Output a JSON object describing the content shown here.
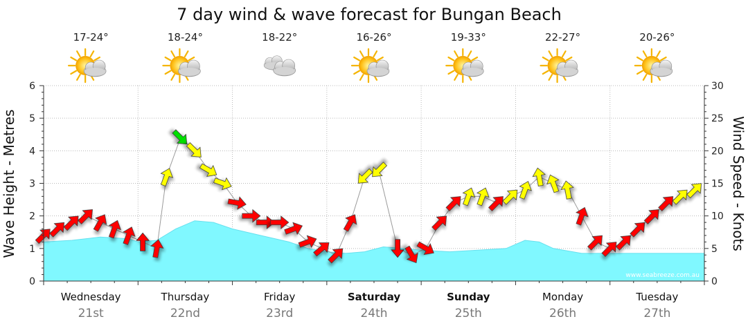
{
  "chart_data": {
    "type": "line",
    "title": "7 day wind & wave forecast for Bungan Beach",
    "ylabel_left": "Wave Height - Metres",
    "ylabel_right": "Wind Speed - Knots",
    "ylim_left": [
      0,
      6
    ],
    "ylim_right": [
      0,
      30
    ],
    "yticks_left": [
      "0",
      "1",
      "2",
      "3",
      "4",
      "5",
      "6"
    ],
    "yticks_right": [
      "0",
      "5",
      "10",
      "15",
      "20",
      "25",
      "30"
    ],
    "grid": true,
    "watermark": "www.seabreeze.com.au",
    "days": [
      {
        "name": "Wednesday",
        "date": "21st",
        "temp": "17-24°",
        "weather_icon": "sun-cloud-icon",
        "bold": false
      },
      {
        "name": "Thursday",
        "date": "22nd",
        "temp": "18-24°",
        "weather_icon": "sun-cloud-icon",
        "bold": false
      },
      {
        "name": "Friday",
        "date": "23rd",
        "temp": "18-22°",
        "weather_icon": "cloud-icon",
        "bold": false
      },
      {
        "name": "Saturday",
        "date": "24th",
        "temp": "16-26°",
        "weather_icon": "sun-cloud-icon",
        "bold": true
      },
      {
        "name": "Sunday",
        "date": "25th",
        "temp": "19-33°",
        "weather_icon": "sun-cloud-icon",
        "bold": true
      },
      {
        "name": "Monday",
        "date": "26th",
        "temp": "22-27°",
        "weather_icon": "sun-cloud-icon",
        "bold": false
      },
      {
        "name": "Tuesday",
        "date": "27th",
        "temp": "20-26°",
        "weather_icon": "sun-cloud-icon",
        "bold": false
      }
    ],
    "x_unit": "day",
    "wave_height": {
      "x": [
        0,
        0.3,
        0.6,
        0.9,
        1.0,
        1.2,
        1.4,
        1.6,
        1.8,
        2.0,
        2.3,
        2.6,
        2.8,
        3.0,
        3.2,
        3.4,
        3.6,
        3.8,
        4.0,
        4.3,
        4.6,
        4.9,
        5.1,
        5.25,
        5.4,
        5.7,
        6.0,
        6.5,
        7.0
      ],
      "values": [
        1.2,
        1.25,
        1.35,
        1.3,
        1.2,
        1.25,
        1.6,
        1.85,
        1.8,
        1.6,
        1.4,
        1.2,
        1.0,
        0.9,
        0.85,
        0.9,
        1.05,
        1.0,
        0.95,
        0.9,
        0.95,
        1.0,
        1.25,
        1.2,
        1.0,
        0.85,
        0.85,
        0.85,
        0.85
      ],
      "color": "#80f8ff"
    },
    "wind": {
      "x": [
        0,
        0.15,
        0.3,
        0.45,
        0.6,
        0.75,
        0.9,
        1.05,
        1.2,
        1.3,
        1.45,
        1.6,
        1.75,
        1.9,
        2.05,
        2.2,
        2.35,
        2.5,
        2.65,
        2.8,
        2.95,
        3.1,
        3.25,
        3.4,
        3.55,
        3.75,
        3.9,
        4.05,
        4.2,
        4.35,
        4.5,
        4.65,
        4.8,
        4.95,
        5.1,
        5.25,
        5.4,
        5.55,
        5.7,
        5.85,
        6.0,
        6.15,
        6.3,
        6.45,
        6.6,
        6.75,
        6.9
      ],
      "speed_knots": [
        7,
        8,
        9,
        10,
        9,
        8,
        7,
        6,
        5,
        16,
        22,
        20,
        17,
        15,
        12,
        10,
        9,
        9,
        8,
        6,
        5,
        4,
        9,
        16,
        17,
        5,
        4,
        5,
        9,
        12,
        13,
        13,
        12,
        13,
        14,
        16,
        15,
        14,
        10,
        6,
        5,
        6,
        8,
        10,
        12,
        13,
        14
      ],
      "direction_deg": [
        225,
        225,
        225,
        225,
        210,
        200,
        200,
        180,
        190,
        200,
        315,
        315,
        300,
        290,
        280,
        270,
        270,
        270,
        250,
        250,
        230,
        225,
        210,
        45,
        45,
        0,
        330,
        300,
        225,
        225,
        200,
        200,
        225,
        225,
        200,
        170,
        160,
        170,
        200,
        225,
        225,
        225,
        225,
        225,
        225,
        225,
        225
      ],
      "color_scale": [
        {
          "max": 12,
          "color": "#ff0000"
        },
        {
          "max": 20,
          "color": "#ffff00"
        },
        {
          "max": 30,
          "color": "#00e000"
        }
      ]
    }
  }
}
